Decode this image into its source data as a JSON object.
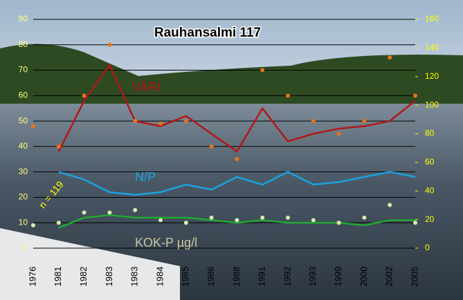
{
  "chart_data": {
    "type": "line",
    "title": "Rauhansalmi 117",
    "annotations": [
      "VÄRI",
      "N/P",
      "KOK-P  µg/l",
      "n = 119"
    ],
    "categories": [
      "1976",
      "1981",
      "1982",
      "1983",
      "1983",
      "1984",
      "1985",
      "1986",
      "1988",
      "1991",
      "1992",
      "1993",
      "1999",
      "2000",
      "2002",
      "2005"
    ],
    "series": [
      {
        "name": "VÄRI",
        "color": "#b01818",
        "style": "line",
        "values": [
          null,
          38,
          58,
          72,
          50,
          48,
          52,
          45,
          38,
          55,
          42,
          45,
          47,
          48,
          50,
          58
        ]
      },
      {
        "name": "N/P",
        "color": "#1aa3e0",
        "style": "line",
        "values": [
          null,
          30,
          27,
          22,
          21,
          22,
          25,
          23,
          28,
          25,
          30,
          25,
          26,
          28,
          30,
          28
        ]
      },
      {
        "name": "KOK-P  µg/l",
        "color": "#22aa33",
        "style": "line",
        "values": [
          null,
          8,
          12,
          13,
          12,
          12,
          12,
          11,
          10,
          11,
          10,
          10,
          10,
          9,
          11,
          11
        ]
      },
      {
        "color": "#e8731a",
        "style": "dots",
        "values": [
          48,
          40,
          60,
          80,
          50,
          49,
          50,
          40,
          35,
          70,
          60,
          50,
          45,
          50,
          75,
          60
        ]
      },
      {
        "color": "#d8ecb0",
        "style": "dots",
        "values": [
          9,
          10,
          14,
          14,
          15,
          11,
          10,
          12,
          11,
          12,
          12,
          11,
          10,
          12,
          17,
          10
        ]
      }
    ],
    "ylim": [
      0,
      90
    ],
    "yticks": [
      0,
      10,
      20,
      30,
      40,
      50,
      60,
      70,
      80,
      90
    ],
    "y2lim": [
      0,
      160
    ],
    "y2ticks": [
      0,
      20,
      40,
      60,
      80,
      100,
      120,
      140,
      160
    ],
    "grid": true
  }
}
